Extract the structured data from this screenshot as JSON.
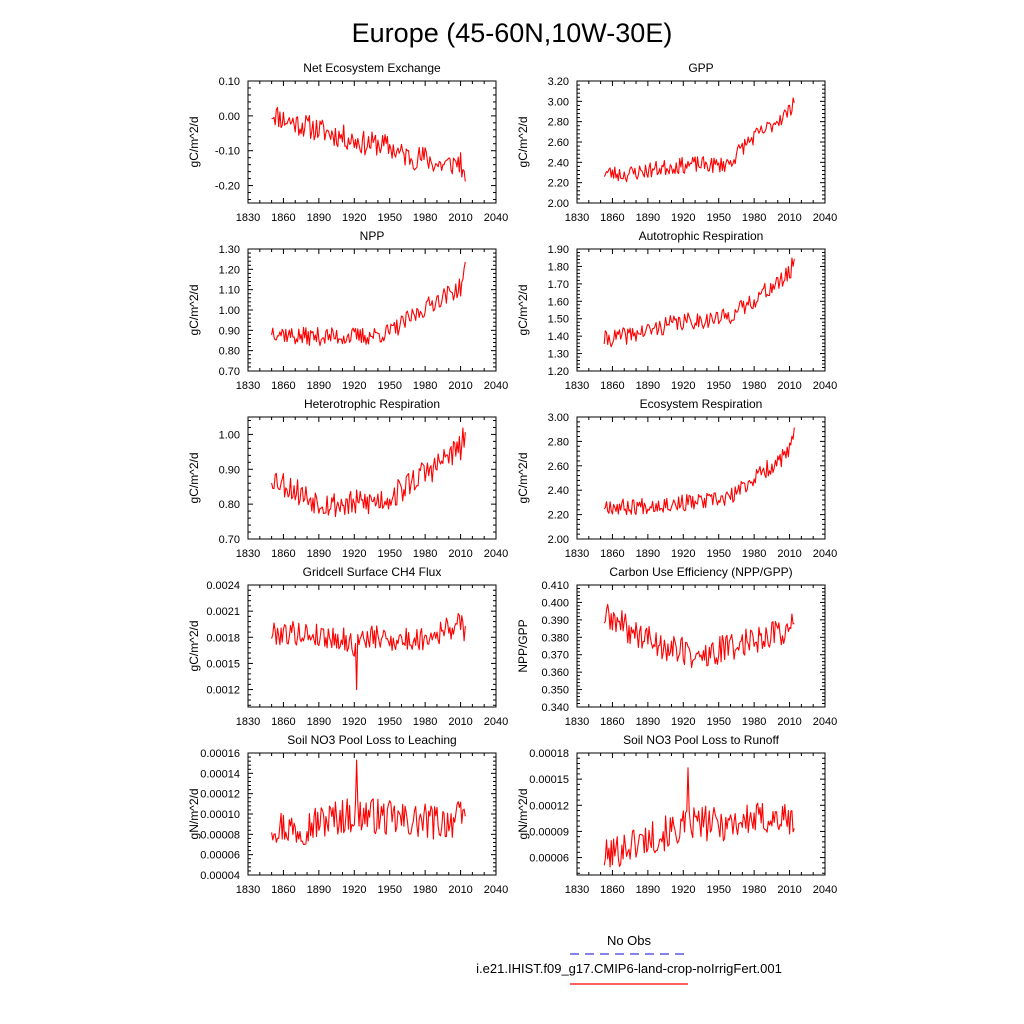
{
  "figure": {
    "title": "Europe (45-60N,10W-30E)",
    "legend": {
      "obs_label": "No Obs",
      "obs_color": "#3b3bdb",
      "case_label": "i.e21.IHIST.f09_g17.CMIP6-land-crop-noIrrigFert.001",
      "case_color": "#ff0000"
    }
  },
  "chart_data": [
    {
      "type": "line",
      "title": "Net Ecosystem Exchange",
      "ylabel": "gC/m^2/d",
      "xlabel": "",
      "xlim": [
        1830,
        2040
      ],
      "xticks": [
        "1830",
        "1860",
        "1890",
        "1920",
        "1950",
        "1980",
        "2010",
        "2040"
      ],
      "ylim": [
        -0.25,
        0.1
      ],
      "yticks": [
        "0.10",
        "0.00",
        "-0.10",
        "-0.20"
      ],
      "yticks_values": [
        0.1,
        0.0,
        -0.1,
        -0.2
      ],
      "series": [
        {
          "x_start": 1850,
          "x_end": 2014,
          "color": "#ff0000",
          "keypoints": [
            [
              1850,
              0.01
            ],
            [
              1860,
              -0.01
            ],
            [
              1870,
              -0.02
            ],
            [
              1880,
              -0.03
            ],
            [
              1890,
              -0.04
            ],
            [
              1900,
              -0.05
            ],
            [
              1910,
              -0.06
            ],
            [
              1920,
              -0.07
            ],
            [
              1930,
              -0.08
            ],
            [
              1940,
              -0.08
            ],
            [
              1950,
              -0.09
            ],
            [
              1960,
              -0.11
            ],
            [
              1970,
              -0.12
            ],
            [
              1980,
              -0.12
            ],
            [
              1990,
              -0.14
            ],
            [
              2000,
              -0.14
            ],
            [
              2010,
              -0.13
            ],
            [
              2014,
              -0.21
            ]
          ],
          "amplitude": 0.035,
          "seed": 11
        }
      ]
    },
    {
      "type": "line",
      "title": "GPP",
      "ylabel": "gC/m^2/d",
      "xlabel": "",
      "xlim": [
        1830,
        2040
      ],
      "xticks": [
        "1830",
        "1860",
        "1890",
        "1920",
        "1950",
        "1980",
        "2010",
        "2040"
      ],
      "ylim": [
        2.0,
        3.2
      ],
      "yticks": [
        "3.20",
        "3.00",
        "2.80",
        "2.60",
        "2.40",
        "2.20",
        "2.00"
      ],
      "yticks_values": [
        3.2,
        3.0,
        2.8,
        2.6,
        2.4,
        2.2,
        2.0
      ],
      "series": [
        {
          "x_start": 1853,
          "x_end": 2014,
          "color": "#ff0000",
          "keypoints": [
            [
              1853,
              2.3
            ],
            [
              1870,
              2.28
            ],
            [
              1890,
              2.32
            ],
            [
              1910,
              2.36
            ],
            [
              1930,
              2.38
            ],
            [
              1950,
              2.37
            ],
            [
              1960,
              2.4
            ],
            [
              1970,
              2.55
            ],
            [
              1980,
              2.65
            ],
            [
              1990,
              2.72
            ],
            [
              2000,
              2.82
            ],
            [
              2010,
              2.9
            ],
            [
              2014,
              3.05
            ]
          ],
          "amplitude": 0.08,
          "seed": 23
        }
      ]
    },
    {
      "type": "line",
      "title": "NPP",
      "ylabel": "gC/m^2/d",
      "xlabel": "",
      "xlim": [
        1830,
        2040
      ],
      "xticks": [
        "1830",
        "1860",
        "1890",
        "1920",
        "1950",
        "1980",
        "2010",
        "2040"
      ],
      "ylim": [
        0.7,
        1.3
      ],
      "yticks": [
        "1.30",
        "1.20",
        "1.10",
        "1.00",
        "0.90",
        "0.80",
        "0.70"
      ],
      "yticks_values": [
        1.3,
        1.2,
        1.1,
        1.0,
        0.9,
        0.8,
        0.7
      ],
      "series": [
        {
          "x_start": 1850,
          "x_end": 2014,
          "color": "#ff0000",
          "keypoints": [
            [
              1850,
              0.9
            ],
            [
              1870,
              0.87
            ],
            [
              1890,
              0.87
            ],
            [
              1910,
              0.87
            ],
            [
              1930,
              0.87
            ],
            [
              1950,
              0.89
            ],
            [
              1960,
              0.93
            ],
            [
              1970,
              0.97
            ],
            [
              1980,
              1.01
            ],
            [
              1990,
              1.05
            ],
            [
              2000,
              1.08
            ],
            [
              2010,
              1.11
            ],
            [
              2014,
              1.2
            ]
          ],
          "amplitude": 0.045,
          "seed": 37
        }
      ]
    },
    {
      "type": "line",
      "title": "Autotrophic Respiration",
      "ylabel": "gC/m^2/d",
      "xlabel": "",
      "xlim": [
        1830,
        2040
      ],
      "xticks": [
        "1830",
        "1860",
        "1890",
        "1920",
        "1950",
        "1980",
        "2010",
        "2040"
      ],
      "ylim": [
        1.2,
        1.9
      ],
      "yticks": [
        "1.90",
        "1.80",
        "1.70",
        "1.60",
        "1.50",
        "1.40",
        "1.30",
        "1.20"
      ],
      "yticks_values": [
        1.9,
        1.8,
        1.7,
        1.6,
        1.5,
        1.4,
        1.3,
        1.2
      ],
      "series": [
        {
          "x_start": 1853,
          "x_end": 2014,
          "color": "#ff0000",
          "keypoints": [
            [
              1853,
              1.38
            ],
            [
              1870,
              1.4
            ],
            [
              1890,
              1.43
            ],
            [
              1910,
              1.47
            ],
            [
              1930,
              1.49
            ],
            [
              1950,
              1.5
            ],
            [
              1960,
              1.52
            ],
            [
              1970,
              1.56
            ],
            [
              1980,
              1.61
            ],
            [
              1990,
              1.66
            ],
            [
              2000,
              1.7
            ],
            [
              2010,
              1.76
            ],
            [
              2014,
              1.84
            ]
          ],
          "amplitude": 0.05,
          "seed": 41
        }
      ]
    },
    {
      "type": "line",
      "title": "Heterotrophic Respiration",
      "ylabel": "gC/m^2/d",
      "xlabel": "",
      "xlim": [
        1830,
        2040
      ],
      "xticks": [
        "1830",
        "1860",
        "1890",
        "1920",
        "1950",
        "1980",
        "2010",
        "2040"
      ],
      "ylim": [
        0.7,
        1.05
      ],
      "yticks": [
        "1.00",
        "0.90",
        "0.80",
        "0.70"
      ],
      "yticks_values": [
        1.0,
        0.9,
        0.8,
        0.7
      ],
      "series": [
        {
          "x_start": 1850,
          "x_end": 2014,
          "color": "#ff0000",
          "keypoints": [
            [
              1850,
              0.88
            ],
            [
              1860,
              0.86
            ],
            [
              1880,
              0.82
            ],
            [
              1900,
              0.8
            ],
            [
              1920,
              0.8
            ],
            [
              1940,
              0.81
            ],
            [
              1950,
              0.82
            ],
            [
              1960,
              0.84
            ],
            [
              1970,
              0.87
            ],
            [
              1980,
              0.89
            ],
            [
              1990,
              0.91
            ],
            [
              2000,
              0.94
            ],
            [
              2010,
              0.96
            ],
            [
              2014,
              1.0
            ]
          ],
          "amplitude": 0.04,
          "seed": 53
        }
      ]
    },
    {
      "type": "line",
      "title": "Ecosystem Respiration",
      "ylabel": "gC/m^2/d",
      "xlabel": "",
      "xlim": [
        1830,
        2040
      ],
      "xticks": [
        "1830",
        "1860",
        "1890",
        "1920",
        "1950",
        "1980",
        "2010",
        "2040"
      ],
      "ylim": [
        2.0,
        3.0
      ],
      "yticks": [
        "3.00",
        "2.80",
        "2.60",
        "2.40",
        "2.20",
        "2.00"
      ],
      "yticks_values": [
        3.0,
        2.8,
        2.6,
        2.4,
        2.2,
        2.0
      ],
      "series": [
        {
          "x_start": 1853,
          "x_end": 2014,
          "color": "#ff0000",
          "keypoints": [
            [
              1853,
              2.28
            ],
            [
              1870,
              2.26
            ],
            [
              1890,
              2.28
            ],
            [
              1910,
              2.29
            ],
            [
              1930,
              2.3
            ],
            [
              1950,
              2.32
            ],
            [
              1960,
              2.34
            ],
            [
              1970,
              2.42
            ],
            [
              1980,
              2.5
            ],
            [
              1990,
              2.57
            ],
            [
              2000,
              2.63
            ],
            [
              2010,
              2.72
            ],
            [
              2014,
              2.85
            ]
          ],
          "amplitude": 0.07,
          "seed": 67
        }
      ]
    },
    {
      "type": "line",
      "title": "Gridcell Surface CH4 Flux",
      "ylabel": "gC/m^2/d",
      "xlabel": "",
      "xlim": [
        1830,
        2040
      ],
      "xticks": [
        "1830",
        "1860",
        "1890",
        "1920",
        "1950",
        "1980",
        "2010",
        "2040"
      ],
      "ylim": [
        0.001,
        0.0024
      ],
      "yticks": [
        "0.0024",
        "0.0021",
        "0.0018",
        "0.0015",
        "0.0012"
      ],
      "yticks_values": [
        0.0024,
        0.0021,
        0.0018,
        0.0015,
        0.0012
      ],
      "series": [
        {
          "x_start": 1850,
          "x_end": 2014,
          "color": "#ff0000",
          "keypoints": [
            [
              1850,
              0.00185
            ],
            [
              1870,
              0.00185
            ],
            [
              1890,
              0.00182
            ],
            [
              1910,
              0.00178
            ],
            [
              1920,
              0.0017
            ],
            [
              1930,
              0.0018
            ],
            [
              1950,
              0.00178
            ],
            [
              1970,
              0.00176
            ],
            [
              1990,
              0.00185
            ],
            [
              2010,
              0.00195
            ],
            [
              2014,
              0.00188
            ]
          ],
          "amplitude": 0.00014,
          "seed": 79,
          "spikes": [
            [
              1922,
              0.0012
            ]
          ]
        }
      ]
    },
    {
      "type": "line",
      "title": "Carbon Use Efficiency (NPP/GPP)",
      "ylabel": "NPP/GPP",
      "xlabel": "",
      "xlim": [
        1830,
        2040
      ],
      "xticks": [
        "1830",
        "1860",
        "1890",
        "1920",
        "1950",
        "1980",
        "2010",
        "2040"
      ],
      "ylim": [
        0.34,
        0.41
      ],
      "yticks": [
        "0.410",
        "0.400",
        "0.390",
        "0.380",
        "0.370",
        "0.360",
        "0.350",
        "0.340"
      ],
      "yticks_values": [
        0.41,
        0.4,
        0.39,
        0.38,
        0.37,
        0.36,
        0.35,
        0.34
      ],
      "series": [
        {
          "x_start": 1853,
          "x_end": 2014,
          "color": "#ff0000",
          "keypoints": [
            [
              1853,
              0.392
            ],
            [
              1865,
              0.388
            ],
            [
              1880,
              0.382
            ],
            [
              1900,
              0.376
            ],
            [
              1920,
              0.372
            ],
            [
              1935,
              0.368
            ],
            [
              1950,
              0.372
            ],
            [
              1970,
              0.377
            ],
            [
              1990,
              0.381
            ],
            [
              2010,
              0.385
            ],
            [
              2014,
              0.39
            ]
          ],
          "amplitude": 0.0085,
          "seed": 89
        }
      ]
    },
    {
      "type": "line",
      "title": "Soil NO3 Pool Loss to Leaching",
      "ylabel": "gN/m^2/d",
      "xlabel": "",
      "xlim": [
        1830,
        2040
      ],
      "xticks": [
        "1830",
        "1860",
        "1890",
        "1920",
        "1950",
        "1980",
        "2010",
        "2040"
      ],
      "ylim": [
        4e-05,
        0.00016
      ],
      "yticks": [
        "0.00016",
        "0.00014",
        "0.00012",
        "0.00010",
        "0.00008",
        "0.00006",
        "0.00004"
      ],
      "yticks_values": [
        0.00016,
        0.00014,
        0.00012,
        0.0001,
        8e-05,
        6e-05,
        4e-05
      ],
      "series": [
        {
          "x_start": 1850,
          "x_end": 2014,
          "color": "#ff0000",
          "keypoints": [
            [
              1850,
              9e-05
            ],
            [
              1870,
              8.5e-05
            ],
            [
              1890,
              9.2e-05
            ],
            [
              1910,
              9.8e-05
            ],
            [
              1930,
              0.0001
            ],
            [
              1950,
              9.5e-05
            ],
            [
              1970,
              9.3e-05
            ],
            [
              1990,
              9.2e-05
            ],
            [
              2010,
              9.5e-05
            ],
            [
              2014,
              0.0001
            ]
          ],
          "amplitude": 1.8e-05,
          "seed": 97,
          "spikes": [
            [
              1922,
              0.000153
            ]
          ]
        }
      ]
    },
    {
      "type": "line",
      "title": "Soil NO3 Pool Loss to Runoff",
      "ylabel": "gN/m^2/d",
      "xlabel": "",
      "xlim": [
        1830,
        2040
      ],
      "xticks": [
        "1830",
        "1860",
        "1890",
        "1920",
        "1950",
        "1980",
        "2010",
        "2040"
      ],
      "ylim": [
        4e-05,
        0.00018
      ],
      "yticks": [
        "0.00018",
        "0.00015",
        "0.00012",
        "0.00009",
        "0.00006"
      ],
      "yticks_values": [
        0.00018,
        0.00015,
        0.00012,
        9e-05,
        6e-05
      ],
      "series": [
        {
          "x_start": 1853,
          "x_end": 2014,
          "color": "#ff0000",
          "keypoints": [
            [
              1853,
              6e-05
            ],
            [
              1870,
              7.2e-05
            ],
            [
              1890,
              8.2e-05
            ],
            [
              1910,
              9e-05
            ],
            [
              1930,
              0.0001
            ],
            [
              1950,
              9.8e-05
            ],
            [
              1970,
              0.000102
            ],
            [
              1990,
              0.000105
            ],
            [
              2010,
              0.000103
            ],
            [
              2014,
              0.0001
            ]
          ],
          "amplitude": 2e-05,
          "seed": 101,
          "spikes": [
            [
              1924,
              0.000163
            ]
          ]
        }
      ]
    }
  ]
}
